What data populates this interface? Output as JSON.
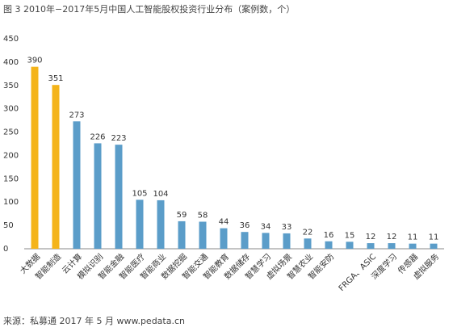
{
  "chart_data": {
    "type": "bar",
    "title": "图 3 2010年−2017年5月中国人工智能股权投资行业分布（案例数，个）",
    "source": "来源：私募通 2017 年 5 月  www.pedata.cn",
    "categories": [
      "大数据",
      "智能制造",
      "云计算",
      "模拟识别",
      "智能金融",
      "智能医疗",
      "智能商业",
      "数据挖掘",
      "智能交通",
      "智能教育",
      "数据储存",
      "智慧学习",
      "虚拟场景",
      "智慧农业",
      "智能安防",
      null,
      "FRGA、ASIC",
      "深度学习",
      "传感器",
      "虚拟服务"
    ],
    "values": [
      390,
      351,
      273,
      226,
      223,
      105,
      104,
      59,
      58,
      44,
      36,
      34,
      33,
      22,
      16,
      15,
      12,
      12,
      11,
      11
    ],
    "colors": [
      "#f4b41a",
      "#f4b41a",
      "#5b9dc9",
      "#5b9dc9",
      "#5b9dc9",
      "#5b9dc9",
      "#5b9dc9",
      "#5b9dc9",
      "#5b9dc9",
      "#5b9dc9",
      "#5b9dc9",
      "#5b9dc9",
      "#5b9dc9",
      "#5b9dc9",
      "#5b9dc9",
      "#5b9dc9",
      "#5b9dc9",
      "#5b9dc9",
      "#5b9dc9",
      "#5b9dc9"
    ],
    "ylim": [
      0,
      450
    ],
    "yticks": [
      0,
      50,
      100,
      150,
      200,
      250,
      300,
      350,
      400,
      450
    ],
    "grid": false
  }
}
